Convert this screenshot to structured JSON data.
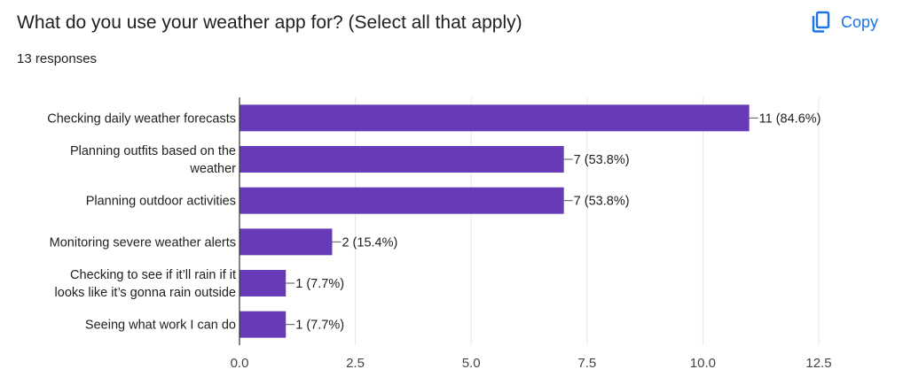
{
  "header": {
    "title": "What do you use your weather app for? (Select all that apply)",
    "responses": "13 responses",
    "copy_label": "Copy",
    "copy_icon": "copy-icon"
  },
  "colors": {
    "bar": "#673ab7",
    "accent": "#1a73e8",
    "grid": "#e6e6e6",
    "axis": "#333333",
    "text": "#202124"
  },
  "chart_data": {
    "type": "bar",
    "orientation": "horizontal",
    "categories": [
      [
        "Checking daily weather forecasts"
      ],
      [
        "Planning outfits based on the",
        "weather"
      ],
      [
        "Planning outdoor activities"
      ],
      [
        "Monitoring severe weather alerts"
      ],
      [
        "Checking to see if it’ll rain if it",
        "looks like it’s gonna rain outside"
      ],
      [
        "Seeing what work I can do"
      ]
    ],
    "values": [
      11,
      7,
      7,
      2,
      1,
      1
    ],
    "data_labels": [
      "11 (84.6%)",
      "7 (53.8%)",
      "7 (53.8%)",
      "2 (15.4%)",
      "1 (7.7%)",
      "1 (7.7%)"
    ],
    "xlim": [
      0,
      12.5
    ],
    "xticks": [
      "0.0",
      "2.5",
      "5.0",
      "7.5",
      "10.0",
      "12.5"
    ],
    "xtick_values": [
      0,
      2.5,
      5,
      7.5,
      10,
      12.5
    ],
    "grid": true,
    "legend": "none"
  }
}
